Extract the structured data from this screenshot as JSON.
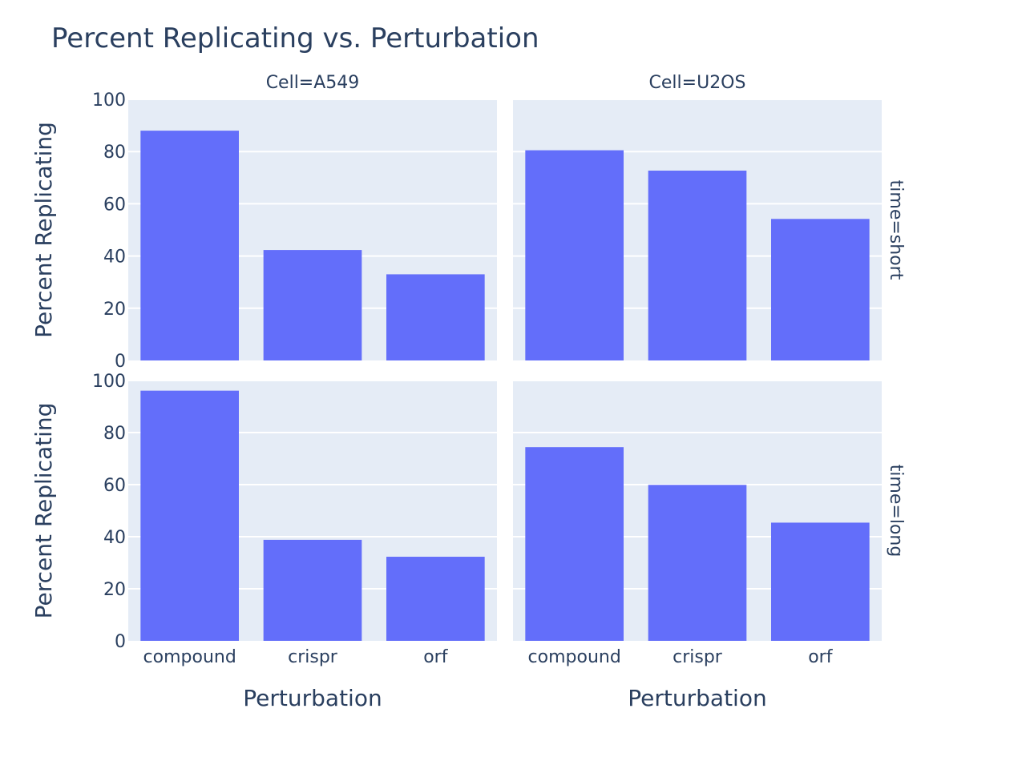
{
  "chart_data": {
    "type": "bar",
    "title": "Percent Replicating vs. Perturbation",
    "xlabel": "Perturbation",
    "ylabel": "Percent Replicating",
    "categories": [
      "compound",
      "crispr",
      "orf"
    ],
    "ylim": [
      0,
      100
    ],
    "yticks": [
      0,
      20,
      40,
      60,
      80,
      100
    ],
    "column_facets": [
      "Cell=A549",
      "Cell=U2OS"
    ],
    "row_facets": [
      "time=short",
      "time=long"
    ],
    "panels": [
      {
        "column": "Cell=A549",
        "row": "time=short",
        "values": [
          88.0,
          42.3,
          33.0
        ]
      },
      {
        "column": "Cell=U2OS",
        "row": "time=short",
        "values": [
          80.5,
          72.7,
          54.2
        ]
      },
      {
        "column": "Cell=A549",
        "row": "time=long",
        "values": [
          96.1,
          38.8,
          32.3
        ]
      },
      {
        "column": "Cell=U2OS",
        "row": "time=long",
        "values": [
          74.4,
          59.9,
          45.4
        ]
      }
    ],
    "grid": true,
    "legend": "none",
    "colors": {
      "bar": "#636efa",
      "plot_bg": "#e5ecf6",
      "grid": "#ffffff",
      "text": "#2a3f5f"
    }
  }
}
